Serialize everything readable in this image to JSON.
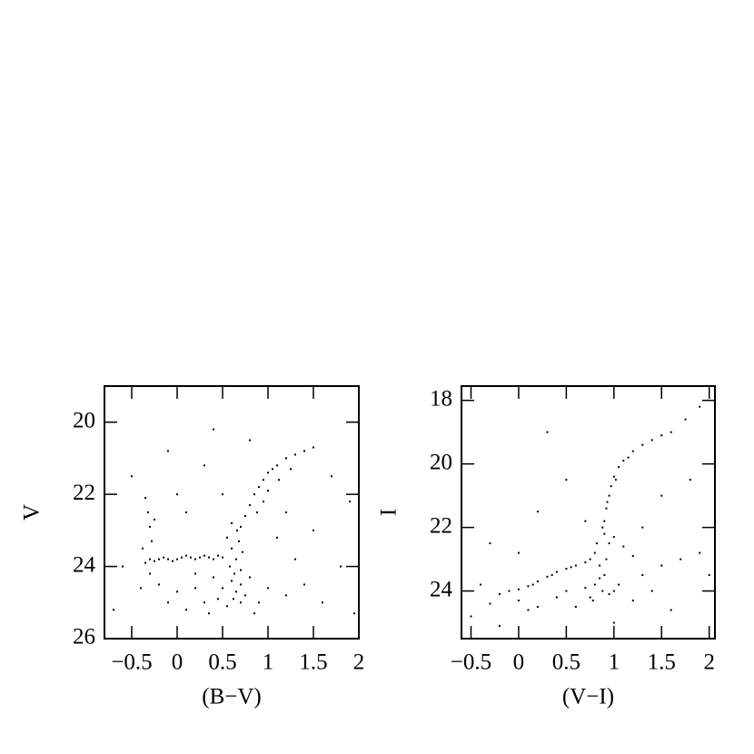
{
  "chart_data": [
    {
      "type": "scatter",
      "xlabel": "(B−V)",
      "ylabel": "V",
      "color": "#000000",
      "xlim": [
        -0.8,
        2
      ],
      "ylim": [
        26,
        19
      ],
      "xticks": [
        {
          "value": -0.5,
          "label": "−0.5"
        },
        0,
        0.5,
        1,
        1.5,
        2
      ],
      "yticks": [
        20,
        22,
        24,
        26
      ],
      "x": [
        -0.35,
        -0.3,
        -0.25,
        -0.2,
        -0.15,
        -0.1,
        -0.05,
        0,
        0.05,
        0.1,
        0.15,
        0.2,
        0.25,
        0.3,
        0.35,
        0.4,
        0.45,
        0.5,
        -0.35,
        -0.32,
        -0.3,
        -0.28,
        -0.38,
        -0.25,
        -0.3,
        0.55,
        0.6,
        0.65,
        0.7,
        0.6,
        0.65,
        0.7,
        0.55,
        0.62,
        0.68,
        0.72,
        0.58,
        0.63,
        0.7,
        0.75,
        0.5,
        0.45,
        0.8,
        0.66,
        0.6,
        0.75,
        0.8,
        0.85,
        0.9,
        0.95,
        1.0,
        1.05,
        1.1,
        1.2,
        1.3,
        1.4,
        1.5,
        0.7,
        0.88,
        0.95,
        1.0,
        1.12,
        1.25,
        -0.2,
        0,
        0.2,
        0.3,
        0.1,
        -0.1,
        0.4,
        0.2,
        -0.4,
        0.35,
        0.9,
        1.0,
        1.2,
        0.85,
        -0.5,
        -0.1,
        0.3,
        0.5,
        0.1,
        1.2,
        1.5,
        1.8,
        1.6,
        1.9,
        1.3,
        1.1,
        1.7,
        0.0,
        -0.6,
        0.8,
        1.4,
        1.95,
        -0.7,
        0.4
      ],
      "values": [
        23.9,
        23.8,
        23.85,
        23.8,
        23.75,
        23.8,
        23.85,
        23.8,
        23.75,
        23.7,
        23.75,
        23.8,
        23.75,
        23.7,
        23.75,
        23.8,
        23.7,
        23.75,
        22.1,
        22.5,
        22.9,
        23.3,
        23.5,
        22.7,
        24.2,
        23.2,
        23.5,
        23.8,
        24.1,
        24.4,
        24.7,
        25.0,
        25.1,
        24.9,
        23.3,
        23.6,
        24.0,
        24.2,
        24.5,
        24.8,
        24.6,
        24.9,
        24.3,
        23.0,
        22.8,
        22.6,
        22.3,
        22.0,
        21.8,
        21.6,
        21.4,
        21.3,
        21.2,
        21.0,
        20.9,
        20.8,
        20.7,
        22.9,
        22.5,
        22.2,
        21.9,
        21.6,
        21.3,
        24.5,
        24.7,
        24.6,
        25.0,
        25.2,
        25.0,
        24.3,
        24.2,
        24.6,
        25.3,
        25.0,
        24.6,
        24.8,
        25.3,
        21.5,
        20.8,
        21.2,
        22.0,
        22.5,
        22.5,
        23.0,
        24.0,
        25.0,
        22.2,
        23.8,
        23.2,
        21.5,
        22.0,
        24.0,
        20.5,
        24.5,
        25.3,
        25.2,
        20.2
      ]
    },
    {
      "type": "scatter",
      "xlabel": "(V−I)",
      "ylabel": "I",
      "color": "#000000",
      "xlim": [
        -0.6,
        2.06
      ],
      "ylim": [
        25.5,
        17.55
      ],
      "xticks": [
        {
          "value": -0.5,
          "label": "−0.5"
        },
        0,
        0.5,
        1,
        1.5,
        2
      ],
      "yticks": [
        18,
        20,
        22,
        24
      ],
      "x": [
        -0.2,
        -0.1,
        0,
        0.1,
        0.2,
        0.3,
        0.4,
        0.5,
        0.6,
        0.7,
        0.75,
        0.15,
        0.35,
        0.55,
        0.8,
        0.85,
        0.9,
        0.8,
        0.88,
        0.95,
        0.75,
        0.82,
        0.9,
        0.85,
        0.92,
        1.0,
        0.7,
        0.78,
        1.05,
        0.9,
        0.92,
        0.95,
        0.97,
        1.0,
        1.05,
        1.1,
        1.2,
        1.3,
        1.4,
        1.5,
        1.6,
        0.88,
        0.93,
        1.02,
        1.15,
        0.95,
        1.0,
        1.1,
        1.2,
        0,
        0.2,
        0.4,
        -0.3,
        0.1,
        0.5,
        1.3,
        1.5,
        1.7,
        1.9,
        1.4,
        1.2,
        -0.4,
        0.6,
        -0.3,
        0.2,
        0.5,
        0.3,
        1.5,
        1.8,
        1.9,
        0.0,
        -0.5,
        1.6,
        1.0,
        0.7,
        1.3,
        2.0,
        -0.2,
        1.75
      ],
      "values": [
        24.1,
        24.0,
        23.95,
        23.85,
        23.7,
        23.55,
        23.4,
        23.3,
        23.2,
        23.1,
        23.0,
        23.8,
        23.5,
        23.25,
        22.8,
        23.2,
        23.5,
        23.8,
        24.0,
        24.1,
        24.2,
        22.5,
        22.2,
        23.6,
        23.0,
        24.0,
        23.9,
        24.3,
        23.8,
        21.8,
        21.4,
        21.0,
        20.7,
        20.4,
        20.1,
        19.9,
        19.6,
        19.4,
        19.25,
        19.1,
        19.0,
        22.0,
        21.2,
        20.5,
        19.8,
        22.5,
        22.3,
        22.6,
        22.9,
        24.3,
        24.5,
        24.2,
        24.4,
        24.6,
        24.0,
        23.5,
        23.2,
        23.0,
        22.8,
        24.0,
        24.3,
        23.8,
        24.5,
        22.5,
        21.5,
        20.5,
        19.0,
        21.0,
        20.5,
        18.2,
        22.8,
        24.8,
        24.6,
        25.0,
        21.8,
        22.0,
        23.5,
        25.1,
        18.6
      ]
    }
  ]
}
